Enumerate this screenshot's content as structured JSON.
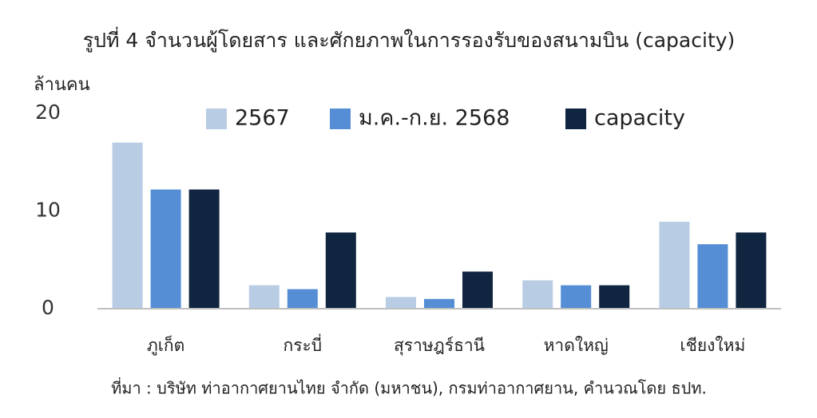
{
  "chart_data": {
    "type": "bar",
    "title": "รูปที่ 4 จำนวนผู้โดยสาร และศักยภาพในการรองรับของสนามบิน (capacity)",
    "y_label": "ล้านคน",
    "source": "ที่มา : บริษัท ท่าอากาศยานไทย จำกัด (มหาชน), กรมท่าอากาศยาน, คำนวณโดย ธปท.",
    "categories": [
      "ภูเก็ต",
      "กระบี่",
      "สุราษฎร์ธานี",
      "หาดใหญ่",
      "เชียงใหม่"
    ],
    "series": [
      {
        "name": "2567",
        "color": "#b8cce4",
        "values": [
          17.0,
          2.4,
          1.2,
          2.9,
          8.9
        ]
      },
      {
        "name": "ม.ค.-ก.ย. 2568",
        "color": "#558ed5",
        "values": [
          12.2,
          2.0,
          1.0,
          2.4,
          6.6
        ]
      },
      {
        "name": "capacity",
        "color": "#10253f",
        "values": [
          12.2,
          7.8,
          3.8,
          2.4,
          7.8
        ]
      }
    ],
    "ylim": [
      0,
      20
    ],
    "yticks": [
      0,
      10,
      20
    ],
    "grid": false
  }
}
